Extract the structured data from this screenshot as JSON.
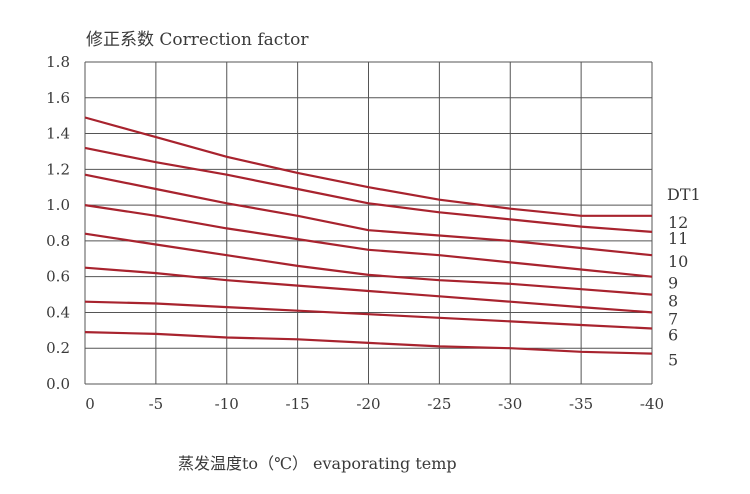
{
  "chart_data": {
    "type": "line",
    "title": "修正系数 Correction factor",
    "xlabel": "蒸发温度to（℃） evaporating temp",
    "ylabel": "",
    "xlim": [
      0,
      -40
    ],
    "ylim": [
      0,
      1.8
    ],
    "x_ticks": [
      0,
      -5,
      -10,
      -15,
      -20,
      -25,
      -30,
      -35,
      -40
    ],
    "y_ticks": [
      "0.0",
      "0.2",
      "0.4",
      "0.6",
      "0.8",
      "1.0",
      "1.2",
      "1.4",
      "1.6",
      "1.8"
    ],
    "grid": true,
    "legend_title": "DT1",
    "line_color": "#a8232e",
    "series": [
      {
        "name": "12",
        "points": [
          [
            0,
            1.49
          ],
          [
            -5,
            1.38
          ],
          [
            -10,
            1.27
          ],
          [
            -15,
            1.18
          ],
          [
            -20,
            1.1
          ],
          [
            -25,
            1.03
          ],
          [
            -30,
            0.98
          ],
          [
            -35,
            0.94
          ],
          [
            -40,
            0.94
          ]
        ]
      },
      {
        "name": "11",
        "points": [
          [
            0,
            1.32
          ],
          [
            -5,
            1.24
          ],
          [
            -10,
            1.17
          ],
          [
            -15,
            1.09
          ],
          [
            -20,
            1.01
          ],
          [
            -25,
            0.96
          ],
          [
            -30,
            0.92
          ],
          [
            -35,
            0.88
          ],
          [
            -40,
            0.85
          ]
        ]
      },
      {
        "name": "10",
        "points": [
          [
            0,
            1.17
          ],
          [
            -5,
            1.09
          ],
          [
            -10,
            1.01
          ],
          [
            -15,
            0.94
          ],
          [
            -20,
            0.86
          ],
          [
            -25,
            0.83
          ],
          [
            -30,
            0.8
          ],
          [
            -35,
            0.76
          ],
          [
            -40,
            0.72
          ]
        ]
      },
      {
        "name": "9",
        "points": [
          [
            0,
            1.0
          ],
          [
            -5,
            0.94
          ],
          [
            -10,
            0.87
          ],
          [
            -15,
            0.81
          ],
          [
            -20,
            0.75
          ],
          [
            -25,
            0.72
          ],
          [
            -30,
            0.68
          ],
          [
            -35,
            0.64
          ],
          [
            -40,
            0.6
          ]
        ]
      },
      {
        "name": "8",
        "points": [
          [
            0,
            0.84
          ],
          [
            -5,
            0.78
          ],
          [
            -10,
            0.72
          ],
          [
            -15,
            0.66
          ],
          [
            -20,
            0.61
          ],
          [
            -25,
            0.58
          ],
          [
            -30,
            0.56
          ],
          [
            -35,
            0.53
          ],
          [
            -40,
            0.5
          ]
        ]
      },
      {
        "name": "7",
        "points": [
          [
            0,
            0.65
          ],
          [
            -5,
            0.62
          ],
          [
            -10,
            0.58
          ],
          [
            -15,
            0.55
          ],
          [
            -20,
            0.52
          ],
          [
            -25,
            0.49
          ],
          [
            -30,
            0.46
          ],
          [
            -35,
            0.43
          ],
          [
            -40,
            0.4
          ]
        ]
      },
      {
        "name": "6",
        "points": [
          [
            0,
            0.46
          ],
          [
            -5,
            0.45
          ],
          [
            -10,
            0.43
          ],
          [
            -15,
            0.41
          ],
          [
            -20,
            0.39
          ],
          [
            -25,
            0.37
          ],
          [
            -30,
            0.35
          ],
          [
            -35,
            0.33
          ],
          [
            -40,
            0.31
          ]
        ]
      },
      {
        "name": "5",
        "points": [
          [
            0,
            0.29
          ],
          [
            -5,
            0.28
          ],
          [
            -10,
            0.26
          ],
          [
            -15,
            0.25
          ],
          [
            -20,
            0.23
          ],
          [
            -25,
            0.21
          ],
          [
            -30,
            0.2
          ],
          [
            -35,
            0.18
          ],
          [
            -40,
            0.17
          ]
        ]
      }
    ]
  }
}
